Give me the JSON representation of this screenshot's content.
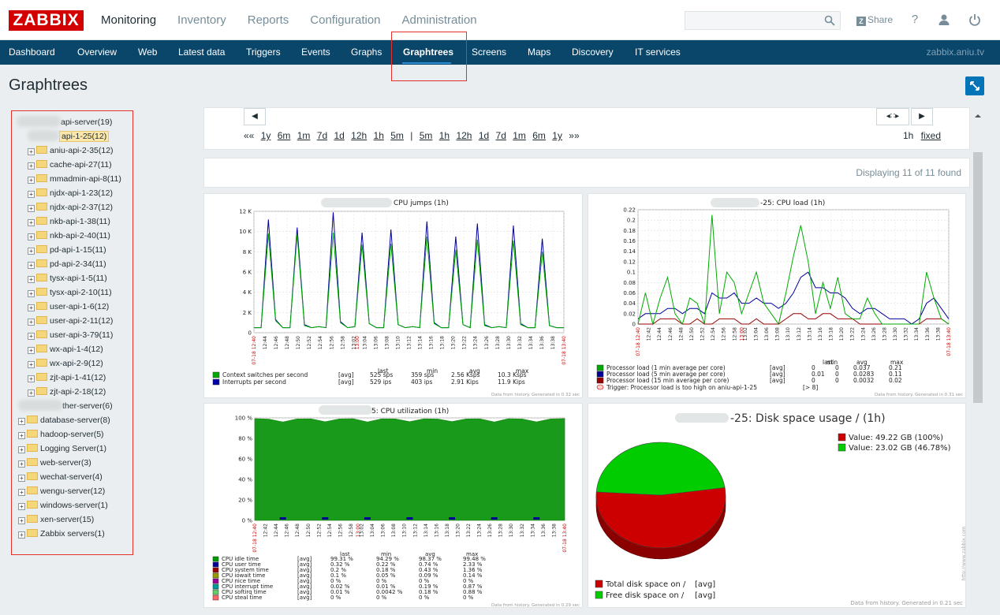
{
  "header": {
    "logo": "ZABBIX",
    "menu": [
      {
        "label": "Monitoring",
        "active": true
      },
      {
        "label": "Inventory"
      },
      {
        "label": "Reports"
      },
      {
        "label": "Configuration"
      },
      {
        "label": "Administration"
      }
    ],
    "search_placeholder": "",
    "share_label": "Share",
    "help_label": "?",
    "icons": [
      "search-icon",
      "user-icon",
      "power-icon"
    ]
  },
  "subnav": {
    "items": [
      "Dashboard",
      "Overview",
      "Web",
      "Latest data",
      "Triggers",
      "Events",
      "Graphs",
      "Graphtrees",
      "Screens",
      "Maps",
      "Discovery",
      "IT services"
    ],
    "active": "Graphtrees",
    "host": "zabbix.aniu.tv"
  },
  "page": {
    "title": "Graphtrees"
  },
  "tree": [
    {
      "label": "api-server(19)",
      "level": 0,
      "expanded": true
    },
    {
      "label": "api-1-25(12)",
      "level": 1,
      "selected": true
    },
    {
      "label": "aniu-api-2-35(12)",
      "level": 1
    },
    {
      "label": "cache-api-27(11)",
      "level": 1
    },
    {
      "label": "mmadmin-api-8(11)",
      "level": 1
    },
    {
      "label": "njdx-api-1-23(12)",
      "level": 1
    },
    {
      "label": "njdx-api-2-37(12)",
      "level": 1
    },
    {
      "label": "nkb-api-1-38(11)",
      "level": 1
    },
    {
      "label": "nkb-api-2-40(11)",
      "level": 1
    },
    {
      "label": "pd-api-1-15(11)",
      "level": 1
    },
    {
      "label": "pd-api-2-34(11)",
      "level": 1
    },
    {
      "label": "tysx-api-1-5(11)",
      "level": 1
    },
    {
      "label": "tysx-api-2-10(11)",
      "level": 1
    },
    {
      "label": "user-api-1-6(12)",
      "level": 1
    },
    {
      "label": "user-api-2-11(12)",
      "level": 1
    },
    {
      "label": "user-api-3-79(11)",
      "level": 1
    },
    {
      "label": "wx-api-1-4(12)",
      "level": 1
    },
    {
      "label": "wx-api-2-9(12)",
      "level": 1
    },
    {
      "label": "zjt-api-1-41(12)",
      "level": 1
    },
    {
      "label": "zjt-api-2-18(12)",
      "level": 1
    },
    {
      "label": "ther-server(6)",
      "level": 0
    },
    {
      "label": "database-server(8)",
      "level": 0
    },
    {
      "label": "hadoop-server(5)",
      "level": 0
    },
    {
      "label": "Logging Server(1)",
      "level": 0
    },
    {
      "label": "web-server(3)",
      "level": 0
    },
    {
      "label": "wechat-server(4)",
      "level": 0
    },
    {
      "label": "wengu-server(12)",
      "level": 0
    },
    {
      "label": "windows-server(1)",
      "level": 0
    },
    {
      "label": "xen-server(15)",
      "level": 0
    },
    {
      "label": "Zabbix servers(1)",
      "level": 0
    }
  ],
  "time": {
    "left_prefix": "««",
    "left_periods": [
      "1y",
      "6m",
      "1m",
      "7d",
      "1d",
      "12h",
      "1h",
      "5m"
    ],
    "separator": "|",
    "right_periods": [
      "5m",
      "1h",
      "12h",
      "1d",
      "7d",
      "1m",
      "6m",
      "1y"
    ],
    "right_suffix": "»»",
    "current": "1h",
    "fixed_label": "fixed"
  },
  "found_text": "Displaying 11 of 11 found",
  "graphs": {
    "cpu_jumps": {
      "title": "CPU jumps (1h)",
      "yticks": [
        "12 K",
        "10 K",
        "8 K",
        "6 K",
        "4 K",
        "2 K",
        "0"
      ],
      "xticks": [
        "12:44",
        "12:46",
        "12:48",
        "12:50",
        "12:52",
        "12:54",
        "12:56",
        "12:58",
        "13:02",
        "13:04",
        "13:06",
        "13:08",
        "13:10",
        "13:12",
        "13:14",
        "13:16",
        "13:18",
        "13:20",
        "13:22",
        "13:24",
        "13:26",
        "13:28",
        "13:30",
        "13:32",
        "13:34",
        "13:36",
        "13:38"
      ],
      "x_start": "07-18 12:40",
      "x_mid": "13:00",
      "x_end": "07-18 13:40",
      "legend_header": [
        "last",
        "min",
        "avg",
        "max"
      ],
      "legend": [
        {
          "name": "Context switches per second",
          "agg": "[avg]",
          "last": "525 sps",
          "min": "359 sps",
          "avg": "2.56 Ksps",
          "max": "10.3 Ksps",
          "color": "#00aa00"
        },
        {
          "name": "Interrupts per second",
          "agg": "[avg]",
          "last": "529 ips",
          "min": "403 ips",
          "avg": "2.91 Kips",
          "max": "11.9 Kips",
          "color": "#0000aa"
        }
      ],
      "generated": "Data from history. Generated in 0.32 sec"
    },
    "cpu_load": {
      "title": "-25: CPU load (1h)",
      "yticks": [
        "0.22",
        "0.2",
        "0.18",
        "0.16",
        "0.14",
        "0.12",
        "0.1",
        "0.08",
        "0.06",
        "0.04",
        "0.02",
        "0"
      ],
      "xticks": [
        "12:42",
        "12:44",
        "12:46",
        "12:48",
        "12:50",
        "12:52",
        "12:54",
        "12:56",
        "12:58",
        "13:02",
        "13:04",
        "13:06",
        "13:08",
        "13:10",
        "13:12",
        "13:14",
        "13:16",
        "13:18",
        "13:20",
        "13:22",
        "13:24",
        "13:26",
        "13:28",
        "13:30",
        "13:32",
        "13:34",
        "13:36",
        "13:38"
      ],
      "x_start": "07-18 12:40",
      "x_mid": "13:00",
      "x_end": "07-18 13:40",
      "legend_header": [
        "last",
        "min",
        "avg",
        "max"
      ],
      "legend": [
        {
          "name": "Processor load (1 min average per core)",
          "agg": "[avg]",
          "last": "0",
          "min": "0",
          "avg": "0.037",
          "max": "0.21",
          "color": "#00aa00"
        },
        {
          "name": "Processor load (5 min average per core)",
          "agg": "[avg]",
          "last": "0.01",
          "min": "0",
          "avg": "0.0283",
          "max": "0.11",
          "color": "#000099"
        },
        {
          "name": "Processor load (15 min average per core)",
          "agg": "[avg]",
          "last": "0",
          "min": "0",
          "avg": "0.0032",
          "max": "0.02",
          "color": "#990000"
        }
      ],
      "trigger": "Trigger: Processor load is too high on aniu-api-1-25",
      "trigger_value": "[> 8]",
      "generated": "Data from history. Generated in 0.31 sec"
    },
    "cpu_util": {
      "title": "5: CPU utilization (1h)",
      "yticks": [
        "100 %",
        "80 %",
        "60 %",
        "40 %",
        "20 %",
        "0 %"
      ],
      "xticks": [
        "12:42",
        "12:44",
        "12:46",
        "12:48",
        "12:50",
        "12:52",
        "12:54",
        "12:56",
        "12:58",
        "13:02",
        "13:04",
        "13:06",
        "13:08",
        "13:10",
        "13:12",
        "13:14",
        "13:16",
        "13:18",
        "13:20",
        "13:22",
        "13:24",
        "13:26",
        "13:28",
        "13:30",
        "13:32",
        "13:34",
        "13:36",
        "13:38"
      ],
      "x_start": "07-18 12:40",
      "x_mid": "13:00",
      "x_end": "07-18 13:40",
      "legend_header": [
        "last",
        "min",
        "avg",
        "max"
      ],
      "legend": [
        {
          "name": "CPU idle time",
          "agg": "[avg]",
          "last": "99.31 %",
          "min": "94.29 %",
          "avg": "98.37 %",
          "max": "99.48 %",
          "color": "#009900"
        },
        {
          "name": "CPU user time",
          "agg": "[avg]",
          "last": "0.32 %",
          "min": "0.22 %",
          "avg": "0.74 %",
          "max": "2.33 %",
          "color": "#000099"
        },
        {
          "name": "CPU system time",
          "agg": "[avg]",
          "last": "0.2 %",
          "min": "0.18 %",
          "avg": "0.43 %",
          "max": "1.36 %",
          "color": "#990000"
        },
        {
          "name": "CPU iowait time",
          "agg": "[avg]",
          "last": "0.1 %",
          "min": "0.05 %",
          "avg": "0.09 %",
          "max": "0.14 %",
          "color": "#999900"
        },
        {
          "name": "CPU nice time",
          "agg": "[avg]",
          "last": "0 %",
          "min": "0 %",
          "avg": "0 %",
          "max": "0 %",
          "color": "#990099"
        },
        {
          "name": "CPU interrupt time",
          "agg": "[avg]",
          "last": "0.02 %",
          "min": "0.01 %",
          "avg": "0.19 %",
          "max": "0.87 %",
          "color": "#009999"
        },
        {
          "name": "CPU softirq time",
          "agg": "[avg]",
          "last": "0.01 %",
          "min": "0.0042 %",
          "avg": "0.18 %",
          "max": "0.88 %",
          "color": "#66cc66"
        },
        {
          "name": "CPU steal time",
          "agg": "[avg]",
          "last": "0 %",
          "min": "0 %",
          "avg": "0 %",
          "max": "0 %",
          "color": "#ff6666"
        }
      ],
      "generated": "Data from history. Generated in 0.29 sec"
    },
    "disk": {
      "title": "-25: Disk space usage / (1h)",
      "value_labels": [
        "Value: 49.22 GB (100%)",
        "Value: 23.02 GB (46.78%)"
      ],
      "legend": [
        {
          "name": "Total disk space on /",
          "agg": "[avg]",
          "color": "#cc0000"
        },
        {
          "name": "Free disk space on /",
          "agg": "[avg]",
          "color": "#00cc00"
        }
      ],
      "side_note": "http://www.zabbix.com",
      "generated": "Data from history. Generated in 0.21 sec"
    }
  },
  "chart_data": [
    {
      "type": "line",
      "title": "CPU jumps (1h)",
      "ylim": [
        0,
        12000
      ],
      "series": [
        {
          "name": "Context switches per second",
          "values": [
            500,
            500,
            9800,
            1200,
            500,
            500,
            9700,
            700,
            500,
            600,
            500,
            9900,
            1000,
            500,
            600,
            8700,
            900,
            500,
            500,
            8800,
            800,
            500,
            600,
            500,
            9500,
            900,
            500,
            500,
            8200,
            800,
            500,
            9200,
            700,
            500,
            600,
            500,
            9100,
            800,
            500,
            500,
            8000,
            700,
            500,
            500
          ]
        },
        {
          "name": "Interrupts per second",
          "values": [
            500,
            500,
            11200,
            1300,
            500,
            500,
            10400,
            800,
            500,
            600,
            500,
            11900,
            1100,
            500,
            600,
            9900,
            900,
            500,
            500,
            10200,
            800,
            500,
            600,
            500,
            11000,
            1000,
            500,
            500,
            9500,
            800,
            500,
            10800,
            800,
            500,
            600,
            500,
            10600,
            900,
            500,
            500,
            9300,
            700,
            500,
            500
          ]
        }
      ]
    },
    {
      "type": "line",
      "title": "CPU load (1h)",
      "ylim": [
        0,
        0.22
      ],
      "series": [
        {
          "name": "Processor load (1 min average per core)",
          "values": [
            0,
            0.06,
            0,
            0.05,
            0.09,
            0.02,
            0,
            0.05,
            0.04,
            0,
            0.21,
            0.02,
            0.1,
            0.08,
            0.02,
            0.06,
            0.1,
            0.04,
            0.02,
            0,
            0.06,
            0.13,
            0.19,
            0.12,
            0.02,
            0.08,
            0.03,
            0.09,
            0.02,
            0.01,
            0.01,
            0.05,
            0.02,
            0,
            0,
            0,
            0,
            0,
            0,
            0.1,
            0.05,
            0.01,
            0
          ]
        },
        {
          "name": "Processor load (5 min average per core)",
          "values": [
            0.01,
            0.02,
            0.02,
            0.02,
            0.03,
            0.03,
            0.02,
            0.03,
            0.03,
            0.02,
            0.06,
            0.05,
            0.05,
            0.06,
            0.04,
            0.04,
            0.05,
            0.04,
            0.04,
            0.03,
            0.04,
            0.06,
            0.09,
            0.1,
            0.07,
            0.07,
            0.06,
            0.06,
            0.05,
            0.03,
            0.02,
            0.03,
            0.03,
            0.02,
            0.01,
            0.01,
            0.01,
            0,
            0.01,
            0.04,
            0.05,
            0.03,
            0.01
          ]
        },
        {
          "name": "Processor load (15 min average per core)",
          "values": [
            0,
            0,
            0,
            0.01,
            0.01,
            0.01,
            0,
            0,
            0.01,
            0,
            0,
            0.01,
            0.01,
            0.01,
            0,
            0,
            0.01,
            0,
            0,
            0,
            0.01,
            0.02,
            0.02,
            0.01,
            0.01,
            0.02,
            0.02,
            0.01,
            0.01,
            0.01,
            0,
            0,
            0,
            0,
            0,
            0,
            0,
            0,
            0,
            0.01,
            0.01,
            0.01,
            0
          ]
        }
      ]
    },
    {
      "type": "area",
      "title": "CPU utilization (1h)",
      "ylim": [
        0,
        100
      ],
      "series": [
        {
          "name": "CPU idle time",
          "values": [
            99.3,
            98.8,
            96,
            99,
            99.1,
            96.2,
            99,
            99.2,
            96,
            99.1,
            99,
            96.3,
            99.1,
            98.9,
            96.4,
            99,
            99.1,
            96,
            99.2,
            98.9,
            96.1,
            99,
            99.3
          ]
        }
      ]
    },
    {
      "type": "pie",
      "title": "Disk space usage / (1h)",
      "categories": [
        "Total disk space on /",
        "Free disk space on /"
      ],
      "values": [
        49.22,
        23.02
      ]
    }
  ]
}
